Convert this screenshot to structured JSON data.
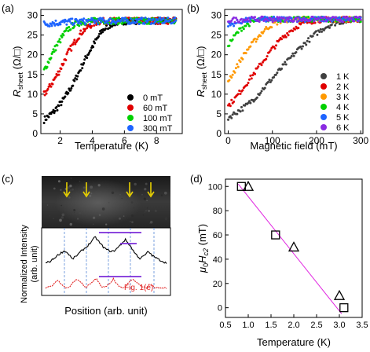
{
  "panels": {
    "a": {
      "label": "(a)",
      "chart_data": {
        "type": "scatter",
        "xlabel": "Temperature (K)",
        "ylabel_main": "R",
        "ylabel_sub": "sheet",
        "ylabel_unit": " (Ω/□)",
        "xlim": [
          0.8,
          9.6
        ],
        "ylim": [
          0,
          31.5
        ],
        "xticks": [
          2,
          4,
          6,
          8
        ],
        "yticks": [
          0,
          5,
          10,
          15,
          20,
          25,
          30
        ],
        "legend_position": "bottom-right",
        "series": [
          {
            "name": "0 mT",
            "color": "#000000",
            "x": [
              1.0,
              1.3,
              1.6,
              1.9,
              2.2,
              2.5,
              2.8,
              3.1,
              3.4,
              3.7,
              4.0,
              4.3,
              4.6,
              4.9,
              5.2,
              5.5,
              6.0,
              7.0,
              8.0,
              9.2
            ],
            "y": [
              3.5,
              4.5,
              5.5,
              7.0,
              8.5,
              10.5,
              12.5,
              15.0,
              17.5,
              20.0,
              22.0,
              24.0,
              26.0,
              27.0,
              27.8,
              28.2,
              28.5,
              28.6,
              28.6,
              28.6
            ]
          },
          {
            "name": "60 mT",
            "color": "#e00000",
            "x": [
              1.0,
              1.3,
              1.6,
              1.9,
              2.2,
              2.5,
              2.8,
              3.1,
              3.4,
              3.7,
              4.0,
              4.3,
              4.6,
              5.0,
              6.0,
              7.0,
              8.0,
              9.2
            ],
            "y": [
              10.0,
              11.5,
              13.5,
              15.5,
              18.0,
              20.5,
              22.5,
              24.5,
              26.0,
              27.0,
              27.8,
              28.3,
              28.5,
              28.6,
              28.6,
              28.6,
              28.6,
              28.6
            ]
          },
          {
            "name": "100 mT",
            "color": "#00d000",
            "x": [
              1.0,
              1.3,
              1.6,
              1.9,
              2.2,
              2.5,
              2.8,
              3.1,
              3.4,
              3.8,
              4.5,
              5.5,
              6.5,
              7.5,
              8.5,
              9.2
            ],
            "y": [
              16.0,
              18.5,
              21.0,
              23.0,
              25.0,
              26.5,
              27.5,
              28.0,
              28.3,
              28.5,
              28.6,
              28.6,
              28.6,
              28.6,
              28.6,
              28.6
            ]
          },
          {
            "name": "300 mT",
            "color": "#1e64ff",
            "x": [
              1.0,
              1.5,
              2.0,
              2.5,
              3.0,
              4.0,
              5.0,
              6.0,
              7.0,
              8.0,
              9.2
            ],
            "y": [
              27.8,
              28.0,
              28.2,
              28.3,
              28.4,
              28.5,
              28.6,
              28.6,
              28.6,
              28.6,
              28.6
            ]
          }
        ]
      }
    },
    "b": {
      "label": "(b)",
      "chart_data": {
        "type": "scatter",
        "xlabel": "Magnetic field (mT)",
        "ylabel_main": "R",
        "ylabel_sub": "sheet",
        "ylabel_unit": " (Ω/□)",
        "xlim": [
          -8,
          305
        ],
        "ylim": [
          0,
          31.5
        ],
        "xticks": [
          0,
          100,
          200,
          300
        ],
        "yticks": [
          0,
          5,
          10,
          15,
          20,
          25,
          30
        ],
        "legend_position": "right",
        "series": [
          {
            "name": "1 K",
            "color": "#404040",
            "x": [
              0,
              20,
              40,
              60,
              80,
              100,
              120,
              140,
              160,
              180,
              200,
              220,
              240,
              260,
              280,
              300
            ],
            "y": [
              4.0,
              5.5,
              7.0,
              9.0,
              11.5,
              14.0,
              16.5,
              19.0,
              21.5,
              23.5,
              25.5,
              27.0,
              28.0,
              28.5,
              28.8,
              29.0
            ]
          },
          {
            "name": "2 K",
            "color": "#e00000",
            "x": [
              0,
              20,
              40,
              60,
              80,
              100,
              120,
              140,
              160,
              180,
              200,
              230,
              260,
              300
            ],
            "y": [
              7.0,
              9.5,
              12.5,
              15.5,
              18.5,
              21.5,
              24.0,
              26.0,
              27.5,
              28.3,
              28.8,
              29.0,
              29.0,
              29.0
            ]
          },
          {
            "name": "3 K",
            "color": "#ff9900",
            "x": [
              0,
              15,
              30,
              45,
              60,
              75,
              90,
              105,
              120,
              140,
              170,
              200,
              250,
              300
            ],
            "y": [
              13.5,
              16.0,
              19.0,
              21.5,
              23.5,
              25.5,
              27.0,
              28.0,
              28.6,
              29.0,
              29.0,
              29.0,
              29.0,
              29.0
            ]
          },
          {
            "name": "4 K",
            "color": "#00d000",
            "x": [
              0,
              10,
              20,
              30,
              40,
              55,
              70,
              90,
              120,
              160,
              200,
              250,
              300
            ],
            "y": [
              22.5,
              24.0,
              25.5,
              26.7,
              27.5,
              28.3,
              28.8,
              29.0,
              29.0,
              29.0,
              29.0,
              29.0,
              29.0
            ]
          },
          {
            "name": "5 K",
            "color": "#1e64ff",
            "x": [
              0,
              10,
              20,
              35,
              50,
              80,
              120,
              160,
              200,
              250,
              300
            ],
            "y": [
              27.3,
              27.8,
              28.2,
              28.6,
              28.9,
              29.0,
              29.0,
              29.0,
              29.0,
              29.0,
              29.0
            ]
          },
          {
            "name": "6 K",
            "color": "#8a2be2",
            "x": [
              0,
              20,
              40,
              80,
              120,
              160,
              200,
              250,
              300
            ],
            "y": [
              28.8,
              28.9,
              29.0,
              29.0,
              29.0,
              29.0,
              29.0,
              29.0,
              29.0
            ]
          }
        ]
      }
    },
    "c": {
      "label": "(c)",
      "ylabel_line1": "Normalized Intensity",
      "ylabel_line2": "(arb. unit)",
      "xlabel": "Position (arb. unit)",
      "annotation": "Fig. 1(e)",
      "chart_data": {
        "type": "line",
        "xlim": [
          0,
          1
        ],
        "series": [
          {
            "color": "#000000",
            "x": [
              0.0,
              0.04,
              0.08,
              0.12,
              0.16,
              0.2,
              0.22,
              0.26,
              0.3,
              0.34,
              0.38,
              0.41,
              0.44,
              0.48,
              0.52,
              0.56,
              0.6,
              0.64,
              0.66,
              0.7,
              0.74,
              0.78,
              0.82,
              0.85,
              0.88,
              0.92,
              0.96,
              1.0
            ],
            "y": [
              0.3,
              0.35,
              0.45,
              0.55,
              0.62,
              0.5,
              0.4,
              0.5,
              0.62,
              0.72,
              0.85,
              0.97,
              0.85,
              0.7,
              0.62,
              0.6,
              0.7,
              0.84,
              0.9,
              0.74,
              0.55,
              0.42,
              0.5,
              0.6,
              0.5,
              0.42,
              0.36,
              0.3
            ]
          },
          {
            "color": "#e02020",
            "x": [
              0.0,
              0.04,
              0.08,
              0.1,
              0.12,
              0.16,
              0.2,
              0.22,
              0.26,
              0.3,
              0.32,
              0.34,
              0.38,
              0.42,
              0.44,
              0.46,
              0.5,
              0.54,
              0.56,
              0.58,
              0.62,
              0.66,
              0.68,
              0.72,
              0.76,
              0.8,
              0.84,
              0.86,
              0.9,
              0.96,
              1.0
            ],
            "y": [
              0.05,
              0.08,
              0.2,
              0.32,
              0.2,
              0.06,
              0.08,
              0.2,
              0.34,
              0.2,
              0.07,
              0.08,
              0.22,
              0.36,
              0.22,
              0.08,
              0.07,
              0.22,
              0.36,
              0.2,
              0.06,
              0.06,
              0.2,
              0.32,
              0.2,
              0.06,
              0.05,
              0.18,
              0.06,
              0.04,
              0.04
            ]
          }
        ]
      }
    },
    "d": {
      "label": "(d)",
      "chart_data": {
        "type": "scatter",
        "xlabel": "Temperature (K)",
        "ylabel_main": "μ",
        "ylabel_sub0": "0",
        "ylabel_h": "H",
        "ylabel_sub": "c2",
        "ylabel_unit": " (mT)",
        "xlim": [
          0.5,
          3.5
        ],
        "ylim": [
          -8,
          106
        ],
        "xticks": [
          0.5,
          1,
          1.5,
          2,
          2.5,
          3,
          3.5
        ],
        "xtick_labels": [
          "0.5",
          "1.0",
          "1.5",
          "2.0",
          "2.5",
          "3.0",
          "3.5"
        ],
        "yticks": [
          0,
          20,
          40,
          60,
          80,
          100
        ],
        "fit_line": {
          "x": [
            0.78,
            3.05
          ],
          "y": [
            102,
            -5
          ],
          "color": "#e020e0"
        },
        "series": [
          {
            "marker": "square",
            "x": [
              0.85,
              1.6,
              3.1
            ],
            "y": [
              100,
              60,
              0
            ]
          },
          {
            "marker": "triangle",
            "x": [
              1.0,
              2.0,
              3.0
            ],
            "y": [
              100,
              50,
              10
            ]
          }
        ]
      }
    }
  }
}
